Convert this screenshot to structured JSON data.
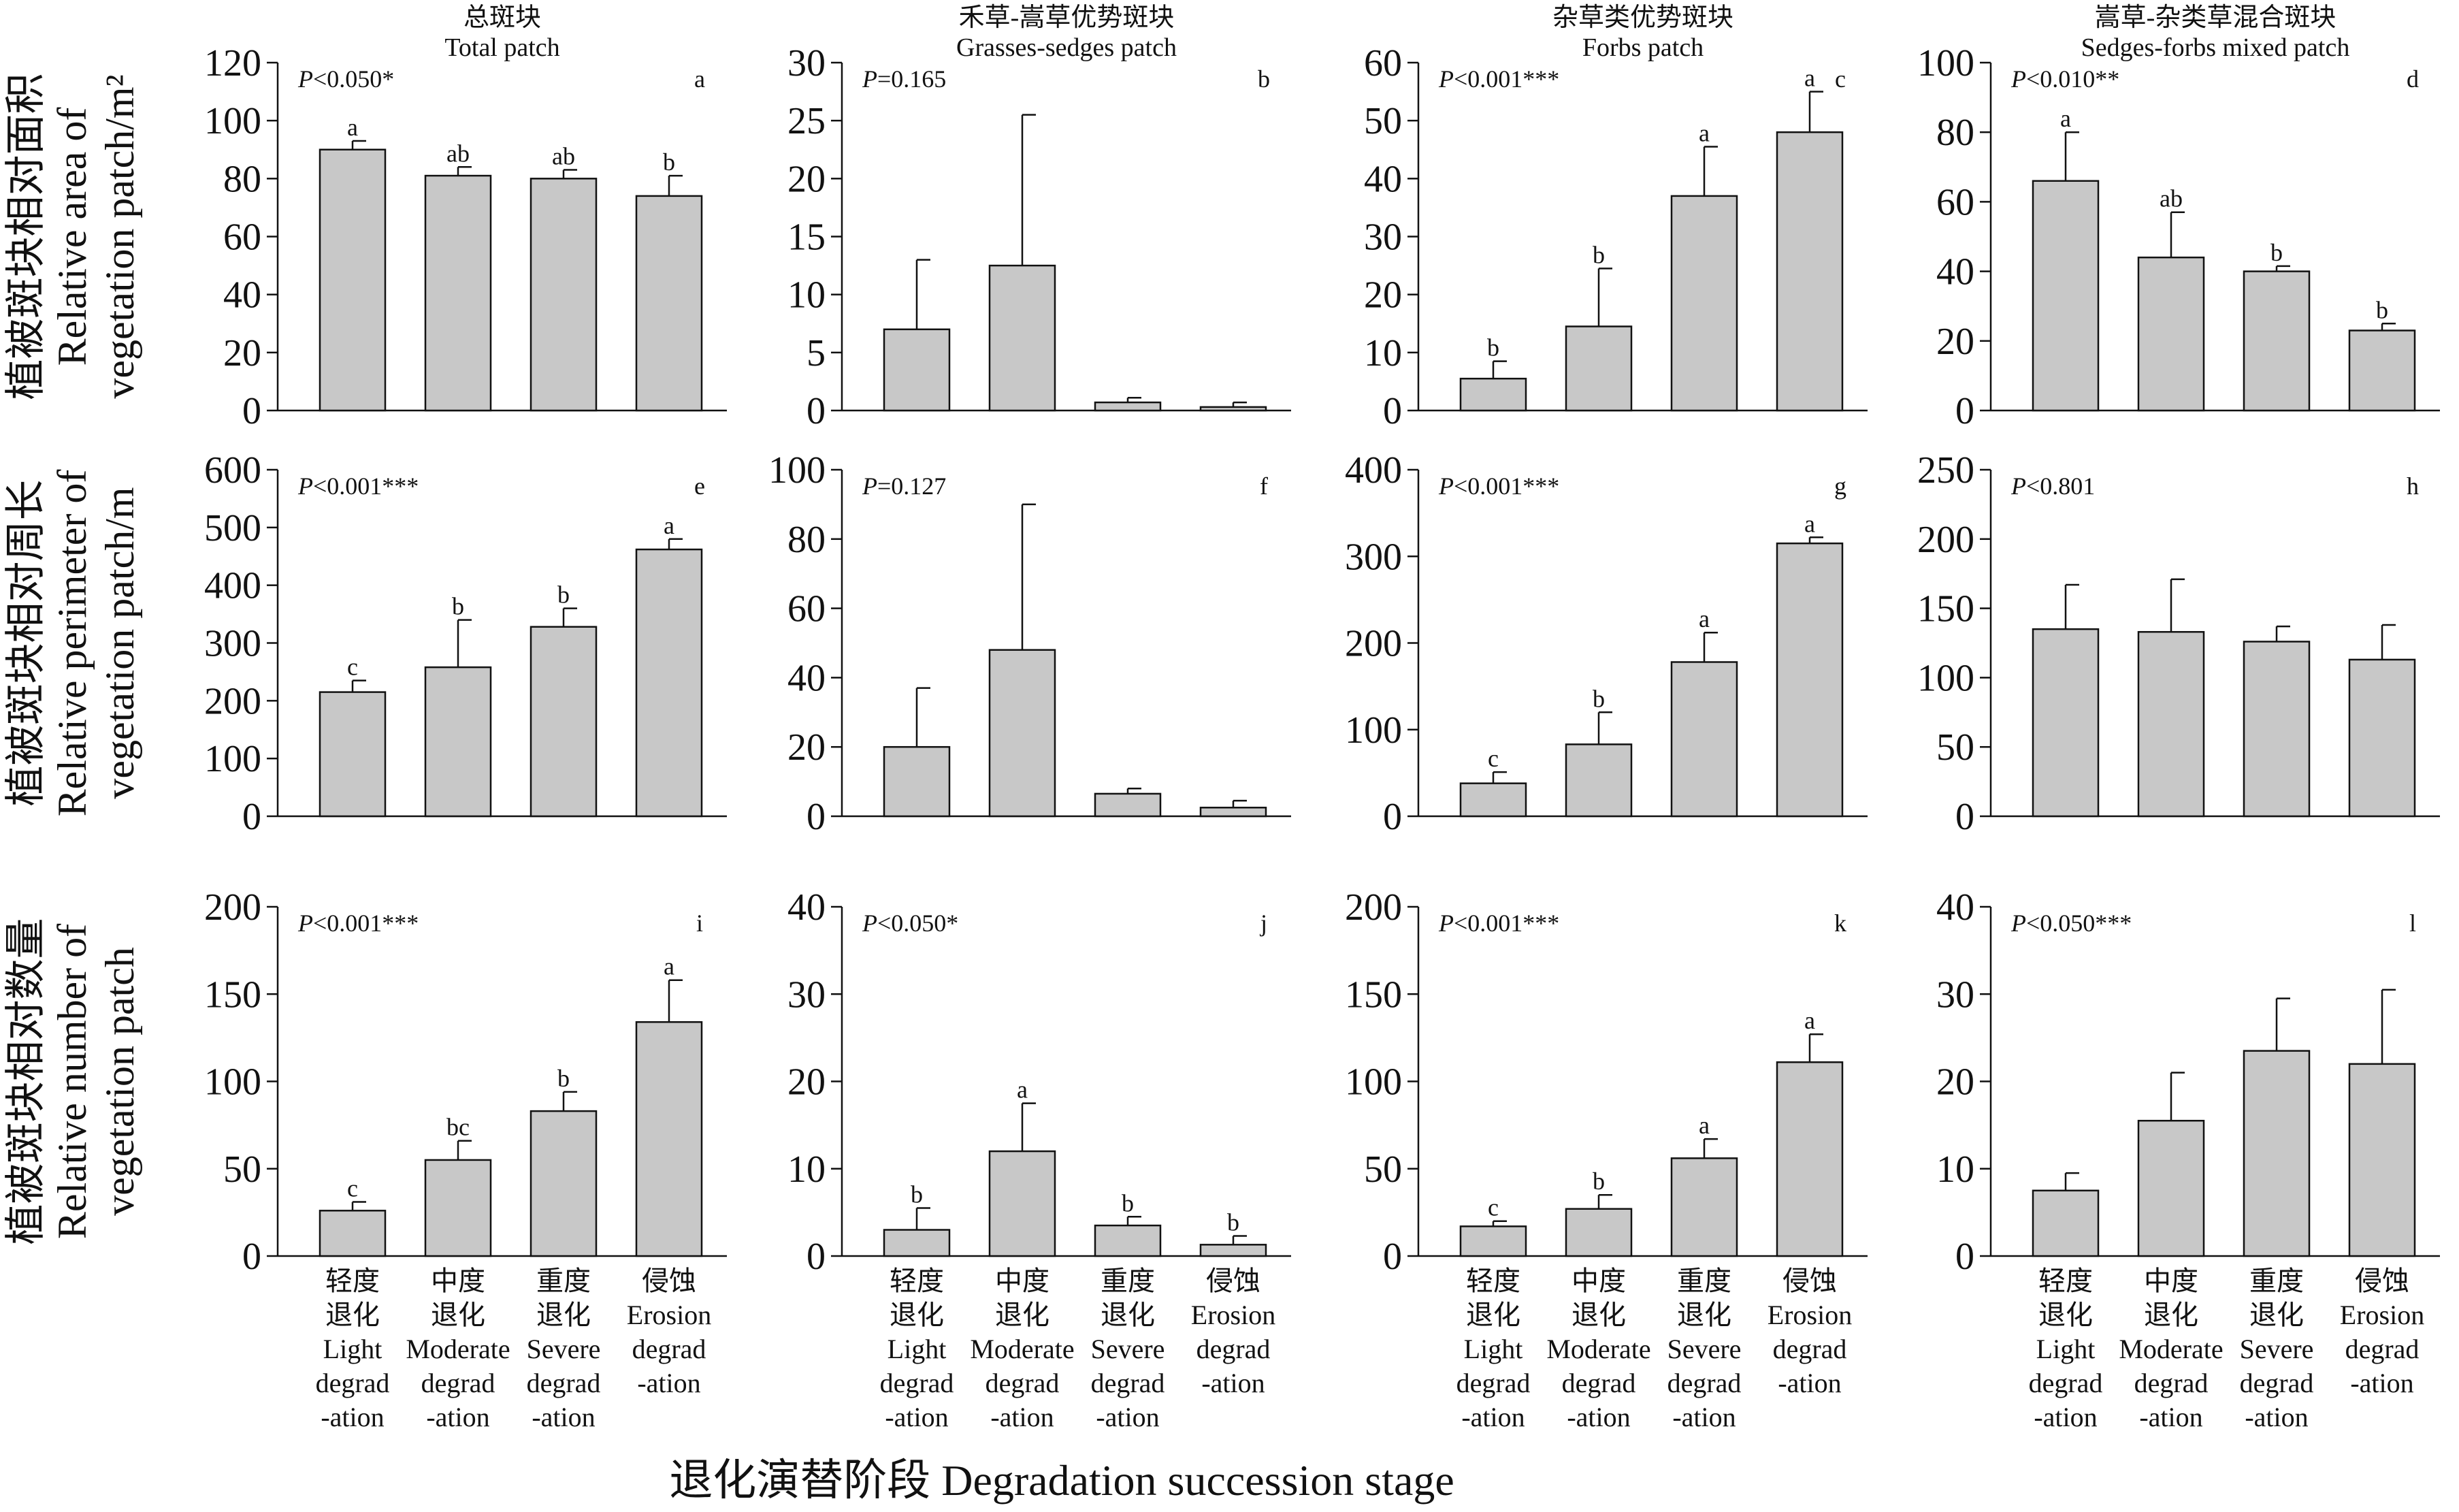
{
  "colors": {
    "bar_fill": "#c8c8c8",
    "line": "#111111",
    "background": "#ffffff"
  },
  "x_title": "退化演替阶段 Degradation succession stage",
  "row_labels": [
    [
      "植被斑块相对面积",
      "Relative area of",
      "vegetation patch/m²"
    ],
    [
      "植被斑块相对周长",
      "Relative perimeter of",
      "vegetation patch/m"
    ],
    [
      "植被斑块相对数量",
      "Relative number of",
      "vegetation patch"
    ]
  ],
  "column_titles": [
    [
      "总斑块",
      "Total patch"
    ],
    [
      "禾草-嵩草优势斑块",
      "Grasses-sedges patch"
    ],
    [
      "杂草类优势斑块",
      "Forbs patch"
    ],
    [
      "嵩草-杂类草混合斑块",
      "Sedges-forbs mixed patch"
    ]
  ],
  "category_labels": [
    [
      "轻度",
      "退化",
      "Light",
      "degrad",
      "-ation"
    ],
    [
      "中度",
      "退化",
      "Moderate",
      "degrad",
      "-ation"
    ],
    [
      "重度",
      "退化",
      "Severe",
      "degrad",
      "-ation"
    ],
    [
      "侵蚀",
      "Erosion",
      "degrad",
      "-ation"
    ]
  ],
  "chart_data": [
    {
      "type": "bar",
      "panel": "a",
      "p_text": "P<0.050*",
      "ylim": [
        0,
        120
      ],
      "ticks": [
        0,
        20,
        40,
        60,
        80,
        100,
        120
      ],
      "values": [
        90,
        81,
        80,
        74
      ],
      "errors": [
        3,
        3,
        3,
        7
      ],
      "letters": [
        "a",
        "ab",
        "ab",
        "b"
      ]
    },
    {
      "type": "bar",
      "panel": "b",
      "p_text": "P=0.165",
      "ylim": [
        0,
        30
      ],
      "ticks": [
        0,
        5,
        10,
        15,
        20,
        25,
        30
      ],
      "values": [
        7,
        12.5,
        0.7,
        0.3
      ],
      "errors": [
        6,
        13,
        0.4,
        0.4
      ],
      "letters": [
        "",
        "",
        "",
        ""
      ]
    },
    {
      "type": "bar",
      "panel": "c",
      "p_text": "P<0.001***",
      "ylim": [
        0,
        60
      ],
      "ticks": [
        0,
        10,
        20,
        30,
        40,
        50,
        60
      ],
      "values": [
        5.5,
        14.5,
        37,
        48
      ],
      "errors": [
        3,
        10,
        8.5,
        7
      ],
      "letters": [
        "b",
        "b",
        "a",
        "a"
      ]
    },
    {
      "type": "bar",
      "panel": "d",
      "p_text": "P<0.010**",
      "ylim": [
        0,
        100
      ],
      "ticks": [
        0,
        20,
        40,
        60,
        80,
        100
      ],
      "values": [
        66,
        44,
        40,
        23
      ],
      "errors": [
        14,
        13,
        1.5,
        2
      ],
      "letters": [
        "a",
        "ab",
        "b",
        "b"
      ]
    },
    {
      "type": "bar",
      "panel": "e",
      "p_text": "P<0.001***",
      "ylim": [
        0,
        600
      ],
      "ticks": [
        0,
        100,
        200,
        300,
        400,
        500,
        600
      ],
      "values": [
        215,
        258,
        328,
        462
      ],
      "errors": [
        20,
        82,
        32,
        18
      ],
      "letters": [
        "c",
        "b",
        "b",
        "a"
      ]
    },
    {
      "type": "bar",
      "panel": "f",
      "p_text": "P=0.127",
      "ylim": [
        0,
        100
      ],
      "ticks": [
        0,
        20,
        40,
        60,
        80,
        100
      ],
      "values": [
        20,
        48,
        6.5,
        2.5
      ],
      "errors": [
        17,
        42,
        1.5,
        2
      ],
      "letters": [
        "",
        "",
        "",
        ""
      ]
    },
    {
      "type": "bar",
      "panel": "g",
      "p_text": "P<0.001***",
      "ylim": [
        0,
        400
      ],
      "ticks": [
        0,
        100,
        200,
        300,
        400
      ],
      "values": [
        38,
        83,
        178,
        315
      ],
      "errors": [
        13,
        37,
        34,
        7
      ],
      "letters": [
        "c",
        "b",
        "a",
        "a"
      ]
    },
    {
      "type": "bar",
      "panel": "h",
      "p_text": "P<0.801",
      "ylim": [
        0,
        250
      ],
      "ticks": [
        0,
        50,
        100,
        150,
        200,
        250
      ],
      "values": [
        135,
        133,
        126,
        113
      ],
      "errors": [
        32,
        38,
        11,
        25
      ],
      "letters": [
        "",
        "",
        "",
        ""
      ]
    },
    {
      "type": "bar",
      "panel": "i",
      "p_text": "P<0.001***",
      "ylim": [
        0,
        200
      ],
      "ticks": [
        0,
        50,
        100,
        150,
        200
      ],
      "values": [
        26,
        55,
        83,
        134
      ],
      "errors": [
        5,
        11,
        11,
        24
      ],
      "letters": [
        "c",
        "bc",
        "b",
        "a"
      ]
    },
    {
      "type": "bar",
      "panel": "j",
      "p_text": "P<0.050*",
      "ylim": [
        0,
        40
      ],
      "ticks": [
        0,
        10,
        20,
        30,
        40
      ],
      "values": [
        3,
        12,
        3.5,
        1.3
      ],
      "errors": [
        2.5,
        5.5,
        1,
        1
      ],
      "letters": [
        "b",
        "a",
        "b",
        "b"
      ]
    },
    {
      "type": "bar",
      "panel": "k",
      "p_text": "P<0.001***",
      "ylim": [
        0,
        200
      ],
      "ticks": [
        0,
        50,
        100,
        150,
        200
      ],
      "values": [
        17,
        27,
        56,
        111
      ],
      "errors": [
        3,
        8,
        11,
        16
      ],
      "letters": [
        "c",
        "b",
        "a",
        "a"
      ]
    },
    {
      "type": "bar",
      "panel": "l",
      "p_text": "P<0.050***",
      "ylim": [
        0,
        40
      ],
      "ticks": [
        0,
        10,
        20,
        30,
        40
      ],
      "values": [
        7.5,
        15.5,
        23.5,
        22
      ],
      "errors": [
        2,
        5.5,
        6,
        8.5
      ],
      "letters": [
        "",
        "",
        "",
        ""
      ]
    }
  ]
}
